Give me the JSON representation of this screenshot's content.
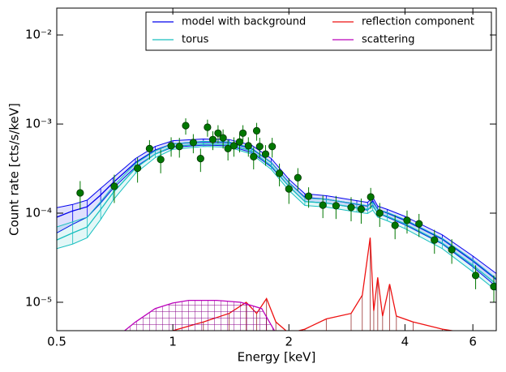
{
  "chart_data": {
    "type": "line",
    "xlabel": "Energy [keV]",
    "ylabel": "Count rate [cts/s/keV]",
    "xscale": "log",
    "yscale": "log",
    "xlim": [
      0.5,
      6.9
    ],
    "ylim": [
      4.8e-06,
      0.02
    ],
    "xticks": [
      0.5,
      1,
      2,
      4,
      6
    ],
    "yticks": [
      {
        "value": 1e-05,
        "label": "10⁻⁵"
      },
      {
        "value": 0.0001,
        "label": "10⁻⁴"
      },
      {
        "value": 0.001,
        "label": "10⁻³"
      },
      {
        "value": 0.01,
        "label": "10⁻²"
      }
    ],
    "legend": "upper right",
    "series": [
      {
        "name": "model with background",
        "color": "#0000ee",
        "x": [
          0.5,
          0.55,
          0.6,
          0.65,
          0.7,
          0.8,
          0.9,
          1.0,
          1.2,
          1.4,
          1.6,
          1.8,
          2.0,
          2.2,
          2.5,
          3.0,
          3.2,
          3.3,
          3.4,
          3.6,
          4.0,
          5.0,
          6.0,
          6.9
        ],
        "values": [
          9e-05,
          0.000106,
          0.000118,
          0.00016,
          0.00022,
          0.00037,
          0.00051,
          0.0006,
          0.00063,
          0.00062,
          0.00053,
          0.00037,
          0.00022,
          0.00015,
          0.000143,
          0.000126,
          0.00012,
          0.000137,
          0.00011,
          0.0001,
          8.3e-05,
          5.1e-05,
          2.9e-05,
          1.8e-05
        ],
        "low": [
          6e-05,
          7.5e-05,
          9e-05,
          0.00013,
          0.00019,
          0.00033,
          0.00046,
          0.00055,
          0.00058,
          0.00057,
          0.00048,
          0.00033,
          0.0002,
          0.000135,
          0.00013,
          0.000114,
          0.000108,
          0.000123,
          0.0001,
          9e-05,
          7.4e-05,
          4.5e-05,
          2.5e-05,
          1.5e-05
        ],
        "high": [
          0.000115,
          0.000125,
          0.00014,
          0.00019,
          0.00025,
          0.00041,
          0.00056,
          0.00065,
          0.00068,
          0.00067,
          0.00058,
          0.00041,
          0.00024,
          0.000165,
          0.000157,
          0.000138,
          0.000132,
          0.00015,
          0.00012,
          0.00011,
          9.2e-05,
          5.7e-05,
          3.3e-05,
          2.1e-05
        ]
      },
      {
        "name": "torus",
        "color": "#17bfbf",
        "x": [
          0.5,
          0.55,
          0.6,
          0.65,
          0.7,
          0.8,
          0.9,
          1.0,
          1.2,
          1.4,
          1.6,
          1.8,
          2.0,
          2.2,
          2.5,
          3.0,
          3.2,
          3.3,
          3.4,
          3.6,
          4.0,
          5.0,
          6.0,
          6.9
        ],
        "values": [
          5e-05,
          6e-05,
          7e-05,
          0.00011,
          0.00017,
          0.00032,
          0.00046,
          0.00056,
          0.0006,
          0.00059,
          0.0005,
          0.00034,
          0.0002,
          0.000135,
          0.00013,
          0.000115,
          0.00011,
          0.00012,
          0.0001,
          9.2e-05,
          7.6e-05,
          4.6e-05,
          2.6e-05,
          1.6e-05
        ],
        "low": [
          4e-05,
          4.5e-05,
          5.3e-05,
          8.5e-05,
          0.00014,
          0.00028,
          0.00042,
          0.00052,
          0.00056,
          0.00055,
          0.00046,
          0.00031,
          0.00018,
          0.000122,
          0.000117,
          0.000103,
          9.9e-05,
          0.000108,
          9e-05,
          8.2e-05,
          6.7e-05,
          4e-05,
          2.2e-05,
          1.35e-05
        ],
        "high": [
          7e-05,
          8e-05,
          9e-05,
          0.000135,
          0.0002,
          0.00036,
          0.0005,
          0.0006,
          0.00064,
          0.00063,
          0.00054,
          0.00037,
          0.00022,
          0.000148,
          0.000143,
          0.000127,
          0.000121,
          0.000132,
          0.00011,
          0.000102,
          8.5e-05,
          5.2e-05,
          3e-05,
          1.85e-05
        ]
      },
      {
        "name": "reflection component",
        "color": "#ee1111",
        "x": [
          1.0,
          1.2,
          1.4,
          1.55,
          1.65,
          1.75,
          1.85,
          2.0,
          2.2,
          2.5,
          2.9,
          3.1,
          3.25,
          3.32,
          3.4,
          3.5,
          3.65,
          3.8,
          4.2,
          5.0,
          6.9
        ],
        "values": [
          4.8e-06,
          6e-06,
          7.5e-06,
          1e-05,
          7.5e-06,
          1.1e-05,
          6e-06,
          4.5e-06,
          5e-06,
          6.5e-06,
          7.5e-06,
          1.2e-05,
          5.3e-05,
          8e-06,
          1.9e-05,
          7e-06,
          1.6e-05,
          7e-06,
          6e-06,
          5e-06,
          4e-06
        ]
      },
      {
        "name": "scattering",
        "color": "#bb00bb",
        "x": [
          0.75,
          0.8,
          0.9,
          1.0,
          1.1,
          1.3,
          1.5,
          1.7,
          1.85
        ],
        "values": [
          4.8e-06,
          6e-06,
          8.5e-06,
          9.8e-06,
          1.05e-05,
          1.05e-05,
          1e-05,
          8.5e-06,
          4.5e-06
        ]
      }
    ],
    "points": {
      "color": "#007700",
      "x": [
        0.575,
        0.705,
        0.81,
        0.87,
        0.93,
        0.99,
        1.04,
        1.08,
        1.13,
        1.18,
        1.23,
        1.27,
        1.31,
        1.35,
        1.39,
        1.44,
        1.49,
        1.52,
        1.57,
        1.62,
        1.65,
        1.68,
        1.74,
        1.81,
        1.89,
        2.0,
        2.11,
        2.25,
        2.45,
        2.65,
        2.9,
        3.08,
        3.26,
        3.44,
        3.77,
        4.05,
        4.35,
        4.77,
        5.29,
        6.1,
        6.8
      ],
      "values": [
        0.000169,
        0.0002,
        0.00032,
        0.00053,
        0.0004,
        0.00057,
        0.00056,
        0.00096,
        0.00062,
        0.00041,
        0.00092,
        0.00067,
        0.00079,
        0.0007,
        0.00053,
        0.00057,
        0.00063,
        0.00079,
        0.00057,
        0.00043,
        0.00084,
        0.00056,
        0.00046,
        0.00056,
        0.00028,
        0.000187,
        0.00025,
        0.000155,
        0.000123,
        0.000121,
        0.000116,
        0.000111,
        0.000152,
        0.0001,
        7.3e-05,
        8.3e-05,
        7.6e-05,
        5e-05,
        3.9e-05,
        2e-05,
        1.5e-05
      ],
      "yerr": [
        6e-05,
        7e-05,
        0.0001,
        0.00013,
        0.00012,
        0.00014,
        0.00014,
        0.0002,
        0.00015,
        0.00012,
        0.0002,
        0.00016,
        0.00018,
        0.00017,
        0.00014,
        0.00014,
        0.00015,
        0.00018,
        0.00014,
        0.00012,
        0.00019,
        0.00014,
        0.00012,
        0.00014,
        8e-05,
        6e-05,
        7e-05,
        4e-05,
        3.5e-05,
        3.5e-05,
        3.5e-05,
        3.5e-05,
        4e-05,
        3e-05,
        2.2e-05,
        2.4e-05,
        2.2e-05,
        1.5e-05,
        1.2e-05,
        6e-06,
        5e-06
      ]
    }
  }
}
